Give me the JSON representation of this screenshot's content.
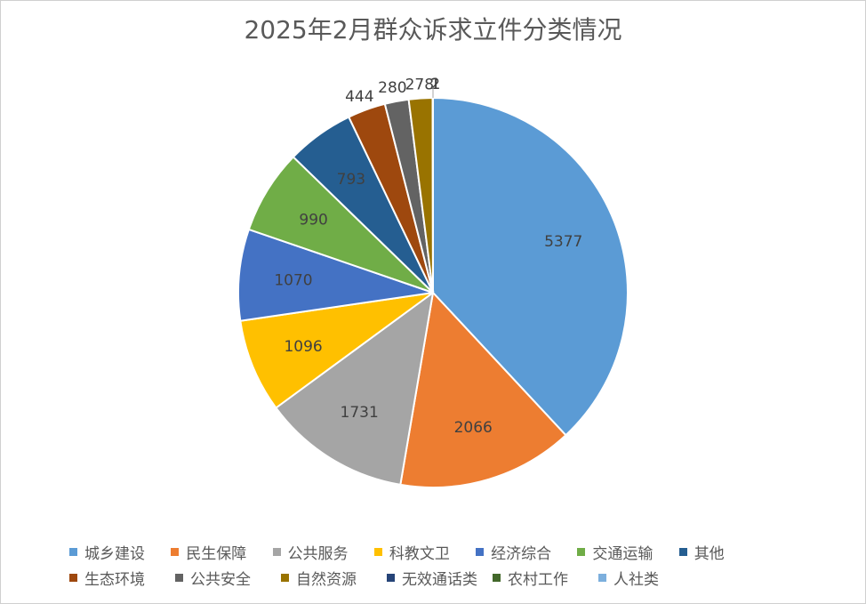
{
  "chart_data": {
    "type": "pie",
    "title": "2025年2月群众诉求立件分类情况",
    "categories": [
      "城乡建设",
      "民生保障",
      "公共服务",
      "科教文卫",
      "经济综合",
      "交通运输",
      "其他",
      "生态环境",
      "公共安全",
      "自然资源",
      "无效通话类",
      "农村工作",
      "人社类"
    ],
    "values": [
      5377,
      2066,
      1731,
      1096,
      1070,
      990,
      793,
      444,
      280,
      278,
      2,
      1,
      1
    ],
    "colors": [
      "#5B9BD5",
      "#ED7D31",
      "#A5A5A5",
      "#FFC000",
      "#4472C4",
      "#70AD47",
      "#255E91",
      "#9E480E",
      "#636363",
      "#997300",
      "#264478",
      "#43682B",
      "#7CAFDD"
    ],
    "legend_position": "bottom"
  }
}
